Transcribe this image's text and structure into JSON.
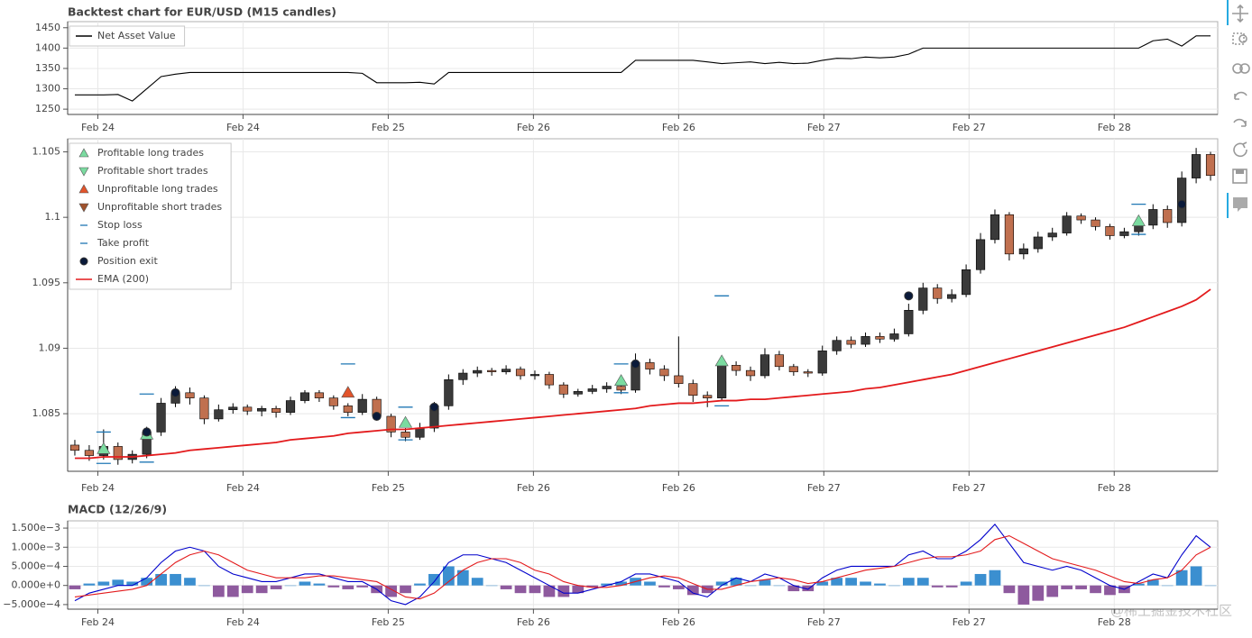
{
  "chart_data": [
    {
      "type": "line",
      "title": "Backtest chart for EUR/USD (M15 candles)",
      "xlim": [
        -0.5,
        79.5
      ],
      "xticks": [
        {
          "value": 1.6,
          "label": "Feb 24"
        },
        {
          "value": 11.7,
          "label": "Feb 24"
        },
        {
          "value": 21.8,
          "label": "Feb 25"
        },
        {
          "value": 31.9,
          "label": "Feb 26"
        },
        {
          "value": 42,
          "label": "Feb 26"
        },
        {
          "value": 52.1,
          "label": "Feb 27"
        },
        {
          "value": 62.2,
          "label": "Feb 27"
        },
        {
          "value": 72.3,
          "label": "Feb 28"
        }
      ],
      "ylim": [
        1237,
        1465
      ],
      "yticks": [
        1250,
        1300,
        1350,
        1400,
        1450
      ],
      "grid": true,
      "legend": "top-left",
      "series": [
        {
          "name": "Net Asset Value",
          "color": "#000000",
          "marker": "line",
          "values": [
            1285,
            1285,
            1285,
            1286,
            1270,
            1300,
            1330,
            1336,
            1340,
            1340,
            1340,
            1340,
            1340,
            1340,
            1340,
            1340,
            1340,
            1340,
            1340,
            1340,
            1338,
            1315,
            1315,
            1315,
            1316,
            1312,
            1340,
            1340,
            1340,
            1340,
            1340,
            1340,
            1340,
            1340,
            1340,
            1340,
            1340,
            1340,
            1340,
            1370,
            1370,
            1370,
            1370,
            1370,
            1366,
            1362,
            1364,
            1366,
            1362,
            1365,
            1362,
            1363,
            1370,
            1375,
            1374,
            1378,
            1376,
            1378,
            1385,
            1400,
            1400,
            1400,
            1400,
            1400,
            1400,
            1400,
            1400,
            1400,
            1400,
            1400,
            1400,
            1400,
            1400,
            1400,
            1400,
            1418,
            1422,
            1405,
            1430,
            1430
          ]
        }
      ]
    },
    {
      "type": "candlestick",
      "xlim": [
        -0.5,
        79.5
      ],
      "xticks": [
        {
          "value": 1.6,
          "label": "Feb 24"
        },
        {
          "value": 11.7,
          "label": "Feb 24"
        },
        {
          "value": 21.8,
          "label": "Feb 25"
        },
        {
          "value": 31.9,
          "label": "Feb 26"
        },
        {
          "value": 42,
          "label": "Feb 26"
        },
        {
          "value": 52.1,
          "label": "Feb 27"
        },
        {
          "value": 62.2,
          "label": "Feb 27"
        },
        {
          "value": 72.3,
          "label": "Feb 28"
        }
      ],
      "ylim": [
        1.0806,
        1.106
      ],
      "yticks": [
        1.085,
        1.09,
        1.095,
        1.1,
        1.105
      ],
      "grid": true,
      "legend": "top-left",
      "up_color": "#3a3a3a",
      "down_color": "#c0704f",
      "open": [
        1.0826,
        1.0822,
        1.0818,
        1.0825,
        1.0815,
        1.0819,
        1.0836,
        1.0858,
        1.0866,
        1.0862,
        1.0846,
        1.0853,
        1.0855,
        1.0852,
        1.0854,
        1.0851,
        1.086,
        1.0866,
        1.0862,
        1.0856,
        1.0851,
        1.0861,
        1.0848,
        1.0836,
        1.0832,
        1.0839,
        1.0856,
        1.0876,
        1.0881,
        1.0883,
        1.0882,
        1.0884,
        1.0879,
        1.088,
        1.0872,
        1.0865,
        1.0867,
        1.0869,
        1.0871,
        1.0868,
        1.0889,
        1.0884,
        1.0879,
        1.0873,
        1.0864,
        1.0862,
        1.0887,
        1.0883,
        1.0879,
        1.0895,
        1.0886,
        1.0882,
        1.0881,
        1.0898,
        1.0906,
        1.0903,
        1.0909,
        1.0907,
        1.0911,
        1.0929,
        1.0946,
        1.0938,
        1.0941,
        1.096,
        1.0983,
        1.1002,
        1.0972,
        1.0976,
        1.0985,
        1.0988,
        1.1001,
        1.0998,
        1.0993,
        1.0986,
        1.0989,
        1.0994,
        1.1006,
        1.0996,
        1.103,
        1.1048
      ],
      "high": [
        1.083,
        1.0826,
        1.0838,
        1.0828,
        1.0822,
        1.084,
        1.0862,
        1.0871,
        1.087,
        1.0864,
        1.0857,
        1.0858,
        1.0857,
        1.0856,
        1.0856,
        1.0863,
        1.0868,
        1.0868,
        1.0864,
        1.0858,
        1.0865,
        1.0863,
        1.085,
        1.0839,
        1.0843,
        1.0859,
        1.088,
        1.0884,
        1.0886,
        1.0885,
        1.0887,
        1.0886,
        1.0883,
        1.0882,
        1.0874,
        1.0869,
        1.0872,
        1.0874,
        1.0873,
        1.0896,
        1.0892,
        1.0887,
        1.0909,
        1.0876,
        1.0867,
        1.0891,
        1.089,
        1.0886,
        1.09,
        1.0898,
        1.0888,
        1.0884,
        1.0902,
        1.0909,
        1.0909,
        1.0912,
        1.0912,
        1.0915,
        1.0934,
        1.095,
        1.0949,
        1.0945,
        1.0964,
        1.0988,
        1.1006,
        1.1004,
        1.098,
        1.0989,
        1.0992,
        1.1004,
        1.1003,
        1.1,
        1.0995,
        1.0992,
        1.0998,
        1.101,
        1.1009,
        1.1035,
        1.1053,
        1.105
      ],
      "low": [
        1.0818,
        1.0814,
        1.0815,
        1.0811,
        1.0812,
        1.0816,
        1.0833,
        1.0855,
        1.0857,
        1.0842,
        1.0844,
        1.085,
        1.0849,
        1.0848,
        1.0847,
        1.0849,
        1.0858,
        1.0859,
        1.0853,
        1.0848,
        1.0849,
        1.0845,
        1.0832,
        1.0829,
        1.083,
        1.0836,
        1.0853,
        1.0872,
        1.0878,
        1.0879,
        1.088,
        1.0876,
        1.0876,
        1.0869,
        1.0862,
        1.0863,
        1.0865,
        1.0866,
        1.0865,
        1.0866,
        1.088,
        1.0875,
        1.087,
        1.0859,
        1.0855,
        1.086,
        1.0879,
        1.0875,
        1.0877,
        1.0883,
        1.0879,
        1.0878,
        1.0879,
        1.0895,
        1.09,
        1.0901,
        1.0904,
        1.0905,
        1.0909,
        1.0926,
        1.0934,
        1.0935,
        1.0939,
        1.0957,
        1.098,
        1.0967,
        1.0968,
        1.0973,
        1.0982,
        1.0986,
        1.0995,
        1.099,
        1.0983,
        1.0984,
        1.0986,
        1.0991,
        1.0992,
        1.0993,
        1.1026,
        1.1028
      ],
      "close": [
        1.0822,
        1.0818,
        1.0825,
        1.0815,
        1.0819,
        1.0836,
        1.0858,
        1.0866,
        1.0862,
        1.0846,
        1.0853,
        1.0855,
        1.0852,
        1.0854,
        1.0851,
        1.086,
        1.0866,
        1.0862,
        1.0856,
        1.0851,
        1.0861,
        1.0848,
        1.0836,
        1.0832,
        1.0839,
        1.0856,
        1.0876,
        1.0881,
        1.0883,
        1.0882,
        1.0884,
        1.0879,
        1.088,
        1.0872,
        1.0865,
        1.0867,
        1.0869,
        1.0871,
        1.0868,
        1.0889,
        1.0884,
        1.0879,
        1.0873,
        1.0864,
        1.0862,
        1.0887,
        1.0883,
        1.0879,
        1.0895,
        1.0886,
        1.0882,
        1.0881,
        1.0898,
        1.0906,
        1.0903,
        1.0909,
        1.0907,
        1.0911,
        1.0929,
        1.0946,
        1.0938,
        1.0941,
        1.096,
        1.0983,
        1.1002,
        1.0972,
        1.0976,
        1.0985,
        1.0988,
        1.1001,
        1.0998,
        1.0993,
        1.0986,
        1.0989,
        1.0994,
        1.1006,
        1.0996,
        1.103,
        1.1048,
        1.1032
      ],
      "series": [
        {
          "name": "Profitable long trades",
          "marker": "triangle-up",
          "color": "#7bdba0",
          "x": [
            2,
            5,
            23,
            38,
            45,
            74
          ],
          "values": [
            1.0823,
            1.0834,
            1.0843,
            1.0875,
            1.089,
            1.0997
          ]
        },
        {
          "name": "Profitable short trades",
          "marker": "triangle-down",
          "color": "#7bdba0",
          "x": [],
          "values": []
        },
        {
          "name": "Unprofitable long trades",
          "marker": "triangle-up",
          "color": "#e2542b",
          "x": [
            19
          ],
          "values": [
            1.0866
          ]
        },
        {
          "name": "Unprofitable short trades",
          "marker": "triangle-down",
          "color": "#a0522d",
          "x": [],
          "values": []
        },
        {
          "name": "Stop loss",
          "marker": "dash",
          "color": "#1f77b4",
          "x": [
            2,
            5,
            19,
            23,
            38,
            45,
            74
          ],
          "values": [
            1.0812,
            1.0813,
            1.0847,
            1.083,
            1.0866,
            1.0856,
            1.0987
          ]
        },
        {
          "name": "Take profit",
          "marker": "dash",
          "color": "#1f77b4",
          "x": [
            2,
            5,
            19,
            23,
            38,
            45,
            74
          ],
          "values": [
            1.0836,
            1.0865,
            1.0888,
            1.0855,
            1.0888,
            1.094,
            1.101
          ]
        },
        {
          "name": "Position exit",
          "marker": "circle",
          "color": "#0a1a3a",
          "x": [
            5,
            7,
            21,
            25,
            39,
            58,
            77
          ],
          "values": [
            1.0836,
            1.0866,
            1.0848,
            1.0855,
            1.0888,
            1.094,
            1.101
          ]
        },
        {
          "name": "EMA (200)",
          "marker": "line",
          "color": "#e31a1c",
          "values": [
            1.0816,
            1.0816,
            1.0817,
            1.0817,
            1.0817,
            1.0818,
            1.0819,
            1.082,
            1.0822,
            1.0823,
            1.0824,
            1.0825,
            1.0826,
            1.0827,
            1.0828,
            1.083,
            1.0831,
            1.0832,
            1.0833,
            1.0835,
            1.0836,
            1.0837,
            1.0838,
            1.0838,
            1.0839,
            1.084,
            1.0841,
            1.0842,
            1.0843,
            1.0844,
            1.0845,
            1.0846,
            1.0847,
            1.0848,
            1.0849,
            1.085,
            1.0851,
            1.0852,
            1.0853,
            1.0854,
            1.0856,
            1.0857,
            1.0858,
            1.0858,
            1.0859,
            1.086,
            1.086,
            1.0861,
            1.0861,
            1.0862,
            1.0863,
            1.0864,
            1.0865,
            1.0866,
            1.0867,
            1.0869,
            1.087,
            1.0872,
            1.0874,
            1.0876,
            1.0878,
            1.088,
            1.0883,
            1.0886,
            1.0889,
            1.0892,
            1.0895,
            1.0898,
            1.0901,
            1.0904,
            1.0907,
            1.091,
            1.0913,
            1.0916,
            1.092,
            1.0924,
            1.0928,
            1.0932,
            1.0937,
            1.0945
          ]
        }
      ]
    },
    {
      "type": "line",
      "title": "MACD (12/26/9)",
      "xlim": [
        -0.5,
        79.5
      ],
      "xticks": [
        {
          "value": 1.6,
          "label": "Feb 24"
        },
        {
          "value": 11.7,
          "label": "Feb 24"
        },
        {
          "value": 21.8,
          "label": "Feb 25"
        },
        {
          "value": 31.9,
          "label": "Feb 26"
        },
        {
          "value": 42,
          "label": "Feb 26"
        },
        {
          "value": 52.1,
          "label": "Feb 27"
        },
        {
          "value": 62.2,
          "label": "Feb 27"
        },
        {
          "value": 72.3,
          "label": "Feb 28"
        }
      ],
      "ylim": [
        -0.00062,
        0.00169
      ],
      "yticks": [
        {
          "value": -0.0005,
          "label": "−5.000e−4"
        },
        {
          "value": 0,
          "label": "0.000e+0"
        },
        {
          "value": 0.0005,
          "label": "5.000e−4"
        },
        {
          "value": 0.001,
          "label": "1.000e−3"
        },
        {
          "value": 0.0015,
          "label": "1.500e−3"
        }
      ],
      "grid": true,
      "series": [
        {
          "style": "bar",
          "color": "#3b8fd0",
          "negative_color": "#8e5a9e",
          "values": [
            -0.0001,
            5e-05,
            0.0001,
            0.00015,
            0.0001,
            0.0002,
            0.0003,
            0.0003,
            0.0002,
            0,
            -0.0003,
            -0.0003,
            -0.0002,
            -0.0002,
            -0.0001,
            0,
            0.0001,
            5e-05,
            -5e-05,
            -0.0001,
            -5e-05,
            -0.0002,
            -0.0003,
            -0.0002,
            5e-05,
            0.0003,
            0.0005,
            0.0004,
            0.0002,
            0,
            -0.0001,
            -0.0002,
            -0.0002,
            -0.0003,
            -0.0003,
            -0.0002,
            -5e-05,
            5e-05,
            0.0001,
            0.0002,
            0.0001,
            -5e-05,
            -0.0001,
            -0.00025,
            -0.0002,
            0.0001,
            0.0002,
            0,
            0.00015,
            0,
            -0.00015,
            -0.00015,
            0.0001,
            0.0002,
            0.0002,
            0.0001,
            5e-05,
            0,
            0.0002,
            0.0002,
            -5e-05,
            -5e-05,
            0.0001,
            0.0003,
            0.0004,
            -0.0002,
            -0.0005,
            -0.0004,
            -0.0003,
            -0.0001,
            -0.0001,
            -0.0002,
            -0.00025,
            -0.0002,
            5e-05,
            0.00015,
            0,
            0.0004,
            0.0005,
            0
          ]
        },
        {
          "marker": "line",
          "color": "#0000cc",
          "values": [
            -0.0004,
            -0.0002,
            -0.0001,
            0,
            0,
            0.0002,
            0.0006,
            0.0009,
            0.001,
            0.0009,
            0.0005,
            0.0003,
            0.0002,
            0.0001,
            0.0001,
            0.0002,
            0.0003,
            0.0003,
            0.0002,
            0.0001,
            0.0001,
            -0.0001,
            -0.0004,
            -0.0005,
            -0.0003,
            0.0001,
            0.0006,
            0.0008,
            0.0008,
            0.0007,
            0.0006,
            0.0004,
            0.0002,
            0,
            -0.0002,
            -0.0002,
            -0.0001,
            0,
            0.0001,
            0.0003,
            0.0003,
            0.0002,
            0.0001,
            -0.0002,
            -0.0003,
            0,
            0.0002,
            0.0001,
            0.0003,
            0.0002,
            0,
            -0.0001,
            0.0002,
            0.0004,
            0.0005,
            0.0005,
            0.0005,
            0.0005,
            0.0008,
            0.0009,
            0.0007,
            0.0007,
            0.0009,
            0.0012,
            0.0016,
            0.0011,
            0.0006,
            0.0005,
            0.0004,
            0.0005,
            0.0004,
            0.0002,
            0,
            -0.0001,
            0.0001,
            0.0003,
            0.0002,
            0.0008,
            0.0013,
            0.001
          ]
        },
        {
          "marker": "line",
          "color": "#e31a1c",
          "values": [
            -0.0003,
            -0.00025,
            -0.0002,
            -0.00015,
            -0.0001,
            0,
            0.0003,
            0.0006,
            0.0008,
            0.0009,
            0.0008,
            0.0006,
            0.0004,
            0.0003,
            0.0002,
            0.0002,
            0.0002,
            0.00025,
            0.00025,
            0.0002,
            0.00015,
            0.0001,
            -0.0001,
            -0.0003,
            -0.00035,
            -0.0002,
            0.0001,
            0.0004,
            0.0006,
            0.0007,
            0.0007,
            0.0006,
            0.0004,
            0.0003,
            0.0001,
            0,
            -5e-05,
            -5e-05,
            0,
            0.0001,
            0.0002,
            0.00025,
            0.0002,
            5e-05,
            -0.0001,
            -0.0001,
            0,
            0.0001,
            0.00015,
            0.0002,
            0.00015,
            5e-05,
            0.0001,
            0.0002,
            0.0003,
            0.0004,
            0.00045,
            0.0005,
            0.0006,
            0.0007,
            0.00075,
            0.00075,
            0.0008,
            0.0009,
            0.0012,
            0.0013,
            0.0011,
            0.0009,
            0.0007,
            0.0006,
            0.0005,
            0.0004,
            0.00025,
            0.0001,
            5e-05,
            0.00015,
            0.0002,
            0.0004,
            0.0008,
            0.001
          ]
        }
      ]
    }
  ],
  "watermark": "@稀土掘金技术社区"
}
